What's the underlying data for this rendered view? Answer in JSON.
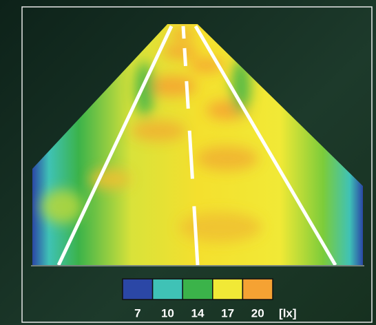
{
  "legend": {
    "items": [
      {
        "label": 7,
        "color": "#2b47a6"
      },
      {
        "label": 10,
        "color": "#3fc2b6"
      },
      {
        "label": 14,
        "color": "#3bb34a"
      },
      {
        "label": 17,
        "color": "#f1e936"
      },
      {
        "label": 20,
        "color": "#f5a233"
      }
    ],
    "unit": "[lx]"
  }
}
